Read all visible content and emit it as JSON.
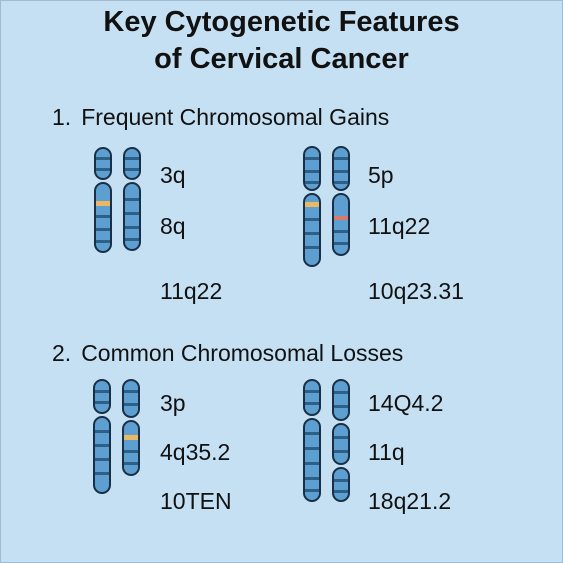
{
  "title": {
    "line1": "Key Cytogenetic Features",
    "line2": "of Cervical Cancer"
  },
  "sections": [
    {
      "number": "1.",
      "heading": "Frequent Chromosomal Gains",
      "left_labels": [
        "3q",
        "8q",
        "11q22"
      ],
      "right_labels": [
        "5p",
        "11q22",
        "10q23.31"
      ]
    },
    {
      "number": "2.",
      "heading": "Common Chromosomal Losses",
      "left_labels": [
        "3p",
        "4q35.2",
        "10TEN"
      ],
      "right_labels": [
        "14Q4.2",
        "11q",
        "18q21.2"
      ]
    }
  ],
  "colors": {
    "background": "#c5e0f3",
    "chromosome_fill": "#5d9fd0",
    "chromosome_outline": "#1a2f45",
    "band_dark": "#2e5f87",
    "highlight_yellow": "#e8b864",
    "highlight_red": "#d77a6a"
  }
}
